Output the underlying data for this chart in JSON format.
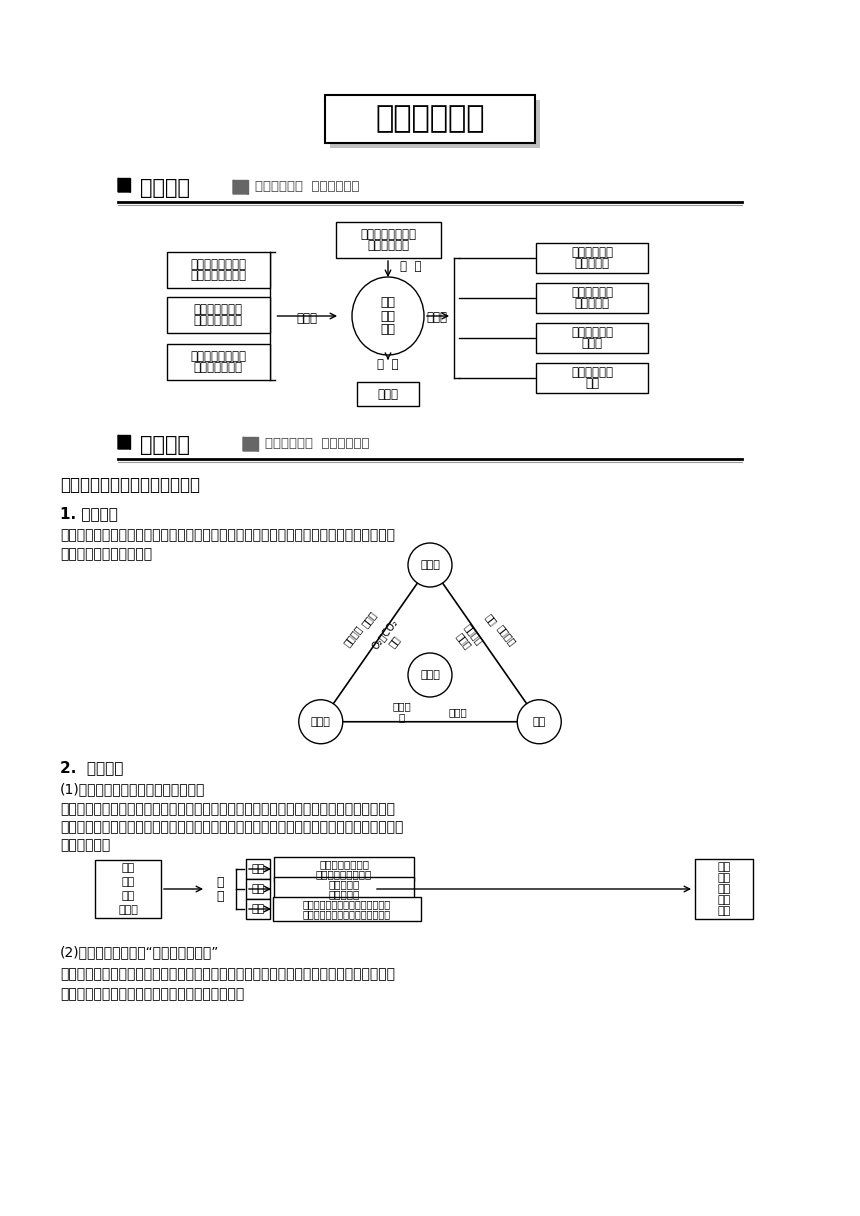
{
  "title": "章末整合提升",
  "section1_title": "网络构建",
  "section1_subtitle": "梳理知识体系  销玄内容纲要",
  "section2_title": "整合提升",
  "section2_subtitle": "整合重点难点  提升学习技能",
  "part1_title": "一、地理环境的整体性思路分析",
  "sub1_title": "1. 形成基础",
  "sub1_text1": "地球圈层之间的物质迁移和能量交换，是地理环境整体发展演化的基础，也是圈层间相互联",
  "sub1_text2": "系的纽带。如下图所示：",
  "sub2_title": "2.  具体表现",
  "sub2_text1": "(1)自然地理环境具有统一的演化过程",
  "sub2_text2": "地理环境各要素的发展变化是统一的，每一个地理要素的演化都是自然地理环境演化的一个",
  "sub2_text3": "方面，如我国西北地区，气候、水文、土壤等自然要素共同构成了西北地区独特的荒漠景观。",
  "sub2_text4": "如下图所示：",
  "sub3_text1": "(2)地理要素的变化会“牵一发而动全身”",
  "sub3_text2": "地理环境的整体性还表现在某一地理要素的变化会导致其他要素以及整个地理环境状态的改",
  "sub3_text3": "变。下图为森林植被被破坏后对地理环境的影响。"
}
